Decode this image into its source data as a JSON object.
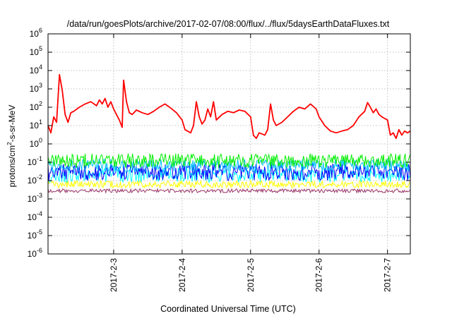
{
  "chart_data": {
    "type": "line",
    "title": "/data/run/goesPlots/archive/2017-02-07/08:00/flux/../flux/5daysEarthDataFluxes.txt",
    "xlabel": "Coordinated Universal Time (UTC)",
    "ylabel_parts": [
      "protons/cm",
      "2",
      "-s-sr-MeV"
    ],
    "y_scale": "log",
    "ylim": [
      1e-06,
      1000000.0
    ],
    "xlim": [
      "2017-02-02 01:00",
      "2017-02-07 08:00"
    ],
    "grid": true,
    "x_ticks": [
      {
        "date": "2017-02-03 00:00",
        "label": "2017-2-3"
      },
      {
        "date": "2017-02-04 00:00",
        "label": "2017-2-4"
      },
      {
        "date": "2017-02-05 00:00",
        "label": "2017-2-5"
      },
      {
        "date": "2017-02-06 00:00",
        "label": "2017-2-6"
      },
      {
        "date": "2017-02-07 00:00",
        "label": "2017-2-7"
      }
    ],
    "y_ticks": [
      {
        "value": 1e-06,
        "base": "10",
        "exp": "-6"
      },
      {
        "value": 1e-05,
        "base": "10",
        "exp": "-5"
      },
      {
        "value": 0.0001,
        "base": "10",
        "exp": "-4"
      },
      {
        "value": 0.001,
        "base": "10",
        "exp": "-3"
      },
      {
        "value": 0.01,
        "base": "10",
        "exp": "-2"
      },
      {
        "value": 0.1,
        "base": "10",
        "exp": "-1"
      },
      {
        "value": 1,
        "base": "10",
        "exp": "0"
      },
      {
        "value": 10,
        "base": "10",
        "exp": "1"
      },
      {
        "value": 100,
        "base": "10",
        "exp": "2"
      },
      {
        "value": 1000,
        "base": "10",
        "exp": "3"
      },
      {
        "value": 10000,
        "base": "10",
        "exp": "4"
      },
      {
        "value": 100000,
        "base": "10",
        "exp": "5"
      },
      {
        "value": 1000000,
        "base": "10",
        "exp": "6"
      }
    ],
    "series": [
      {
        "color": "#ff0000",
        "points": [
          [
            "2017-02-02 01:00",
            10
          ],
          [
            "2017-02-02 02:00",
            4
          ],
          [
            "2017-02-02 03:00",
            30
          ],
          [
            "2017-02-02 04:00",
            15
          ],
          [
            "2017-02-02 05:00",
            6000
          ],
          [
            "2017-02-02 06:00",
            800
          ],
          [
            "2017-02-02 07:00",
            40
          ],
          [
            "2017-02-02 08:00",
            15
          ],
          [
            "2017-02-02 09:00",
            50
          ],
          [
            "2017-02-02 10:00",
            60
          ],
          [
            "2017-02-02 12:00",
            100
          ],
          [
            "2017-02-02 14:00",
            150
          ],
          [
            "2017-02-02 16:00",
            200
          ],
          [
            "2017-02-02 18:00",
            120
          ],
          [
            "2017-02-02 19:00",
            250
          ],
          [
            "2017-02-02 20:00",
            150
          ],
          [
            "2017-02-02 21:00",
            300
          ],
          [
            "2017-02-02 22:00",
            100
          ],
          [
            "2017-02-02 23:00",
            200
          ],
          [
            "2017-02-03 00:00",
            80
          ],
          [
            "2017-02-03 01:00",
            40
          ],
          [
            "2017-02-03 02:00",
            20
          ],
          [
            "2017-02-03 03:00",
            8
          ],
          [
            "2017-02-03 03:30",
            3000
          ],
          [
            "2017-02-03 04:30",
            200
          ],
          [
            "2017-02-03 05:30",
            50
          ],
          [
            "2017-02-03 06:30",
            40
          ],
          [
            "2017-02-03 08:00",
            70
          ],
          [
            "2017-02-03 10:00",
            50
          ],
          [
            "2017-02-03 12:00",
            40
          ],
          [
            "2017-02-03 14:00",
            60
          ],
          [
            "2017-02-03 16:00",
            100
          ],
          [
            "2017-02-03 18:00",
            150
          ],
          [
            "2017-02-03 20:00",
            90
          ],
          [
            "2017-02-03 22:00",
            50
          ],
          [
            "2017-02-04 00:00",
            20
          ],
          [
            "2017-02-04 01:00",
            6
          ],
          [
            "2017-02-04 03:00",
            4
          ],
          [
            "2017-02-04 04:00",
            10
          ],
          [
            "2017-02-04 05:00",
            200
          ],
          [
            "2017-02-04 06:00",
            30
          ],
          [
            "2017-02-04 07:00",
            12
          ],
          [
            "2017-02-04 08:00",
            20
          ],
          [
            "2017-02-04 09:00",
            80
          ],
          [
            "2017-02-04 10:00",
            30
          ],
          [
            "2017-02-04 11:00",
            200
          ],
          [
            "2017-02-04 12:00",
            20
          ],
          [
            "2017-02-04 14:00",
            40
          ],
          [
            "2017-02-04 16:00",
            60
          ],
          [
            "2017-02-04 18:00",
            50
          ],
          [
            "2017-02-04 20:00",
            70
          ],
          [
            "2017-02-04 22:00",
            60
          ],
          [
            "2017-02-05 00:00",
            30
          ],
          [
            "2017-02-05 01:00",
            3
          ],
          [
            "2017-02-05 02:00",
            2
          ],
          [
            "2017-02-05 03:00",
            4
          ],
          [
            "2017-02-05 05:00",
            3
          ],
          [
            "2017-02-05 06:00",
            6
          ],
          [
            "2017-02-05 07:00",
            150
          ],
          [
            "2017-02-05 08:00",
            20
          ],
          [
            "2017-02-05 09:00",
            10
          ],
          [
            "2017-02-05 11:00",
            15
          ],
          [
            "2017-02-05 13:00",
            30
          ],
          [
            "2017-02-05 15:00",
            60
          ],
          [
            "2017-02-05 17:00",
            100
          ],
          [
            "2017-02-05 19:00",
            80
          ],
          [
            "2017-02-05 21:00",
            150
          ],
          [
            "2017-02-05 23:00",
            80
          ],
          [
            "2017-02-06 00:00",
            30
          ],
          [
            "2017-02-06 02:00",
            10
          ],
          [
            "2017-02-06 04:00",
            5
          ],
          [
            "2017-02-06 06:00",
            4
          ],
          [
            "2017-02-06 08:00",
            5
          ],
          [
            "2017-02-06 10:00",
            6
          ],
          [
            "2017-02-06 12:00",
            10
          ],
          [
            "2017-02-06 14:00",
            30
          ],
          [
            "2017-02-06 16:00",
            60
          ],
          [
            "2017-02-06 17:00",
            180
          ],
          [
            "2017-02-06 18:00",
            100
          ],
          [
            "2017-02-06 19:00",
            50
          ],
          [
            "2017-02-06 20:00",
            80
          ],
          [
            "2017-02-06 21:00",
            40
          ],
          [
            "2017-02-06 22:00",
            30
          ],
          [
            "2017-02-07 00:00",
            20
          ],
          [
            "2017-02-07 01:00",
            3
          ],
          [
            "2017-02-07 02:00",
            4
          ],
          [
            "2017-02-07 03:00",
            2
          ],
          [
            "2017-02-07 04:00",
            6
          ],
          [
            "2017-02-07 05:00",
            3
          ],
          [
            "2017-02-07 06:00",
            5
          ],
          [
            "2017-02-07 07:00",
            4
          ],
          [
            "2017-02-07 08:00",
            5
          ]
        ]
      },
      {
        "color": "#00ee00",
        "band": [
          0.05,
          0.3
        ],
        "baseline": 0.13,
        "seed": 11
      },
      {
        "color": "#00bfff",
        "band": [
          0.03,
          0.15
        ],
        "baseline": 0.07,
        "seed": 23
      },
      {
        "color": "#0000ff",
        "band": [
          0.01,
          0.08
        ],
        "baseline": 0.03,
        "seed": 37
      },
      {
        "color": "#00ffff",
        "band": [
          0.008,
          0.05
        ],
        "baseline": 0.02,
        "seed": 41
      },
      {
        "color": "#ffff00",
        "band": [
          0.004,
          0.01
        ],
        "baseline": 0.006,
        "seed": 53
      },
      {
        "color": "#993366",
        "band": [
          0.0022,
          0.0035
        ],
        "baseline": 0.0028,
        "seed": 67
      }
    ]
  }
}
